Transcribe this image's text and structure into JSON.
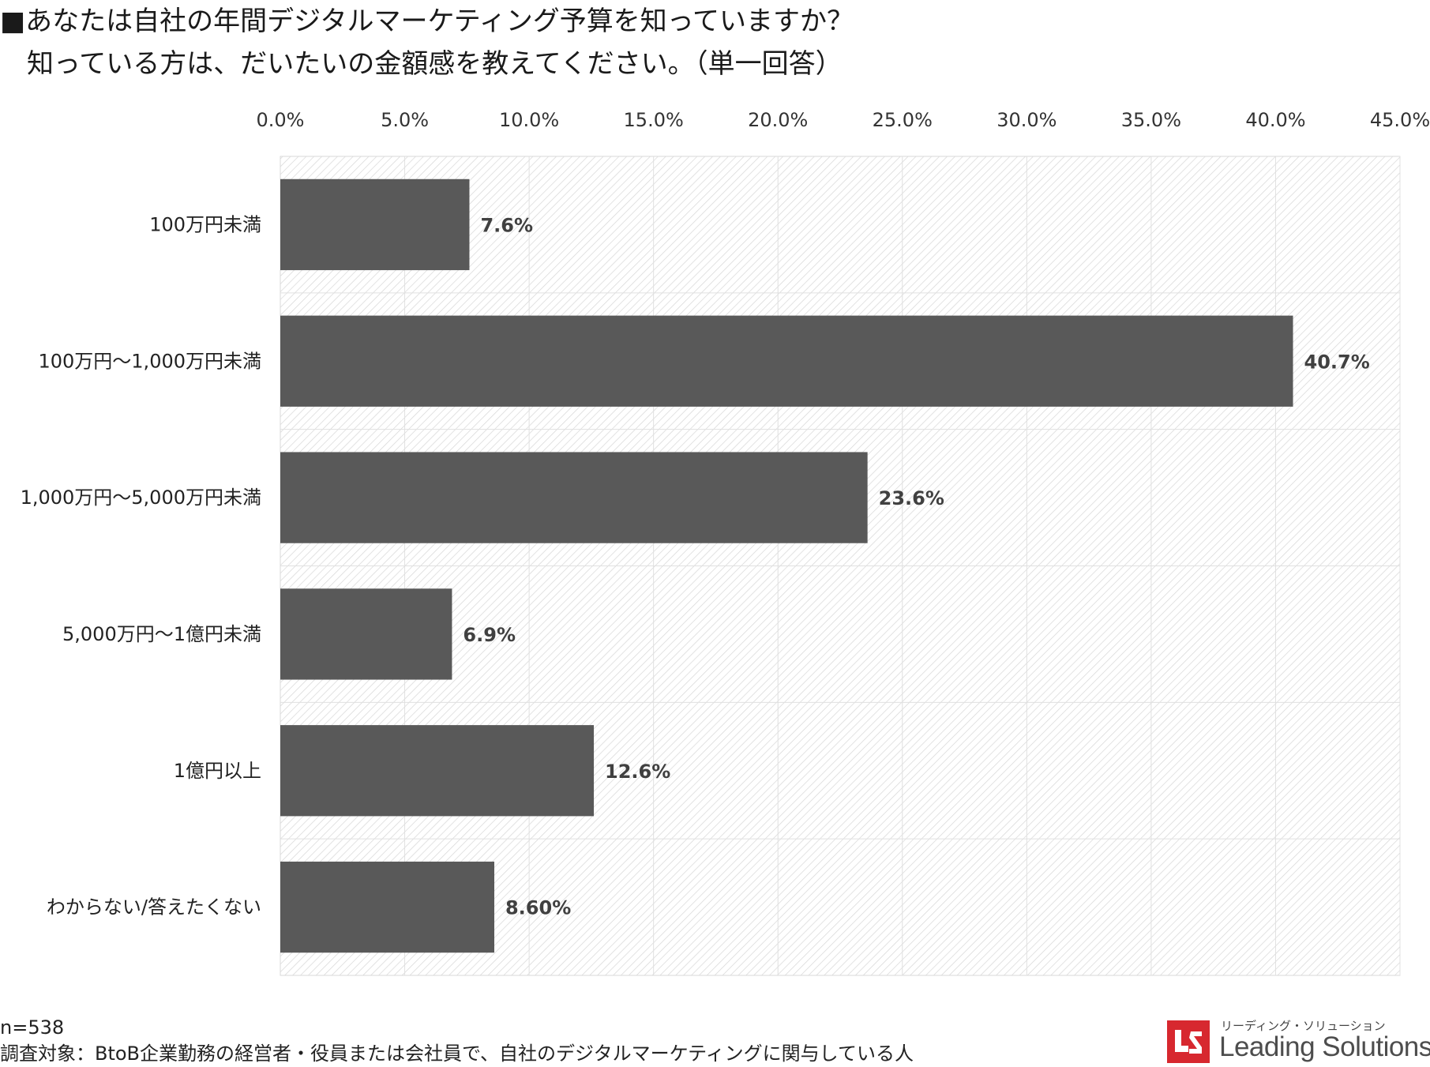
{
  "title": {
    "line1": "■あなたは自社の年間デジタルマーケティング予算を知っていますか？",
    "line2": "知っている方は、だいたいの金額感を教えてください。（単一回答）"
  },
  "chart_data": {
    "type": "bar",
    "orientation": "horizontal",
    "categories": [
      "100万円未満",
      "100万円～1,000万円未満",
      "1,000万円～5,000万円未満",
      "5,000万円～1億円未満",
      "1億円以上",
      "わからない/答えたくない"
    ],
    "values": [
      7.6,
      40.7,
      23.6,
      6.9,
      12.6,
      8.6
    ],
    "value_labels": [
      "7.6%",
      "40.7%",
      "23.6%",
      "6.9%",
      "12.6%",
      "8.60%"
    ],
    "xlim": [
      0,
      45
    ],
    "x_ticks": [
      0,
      5,
      10,
      15,
      20,
      25,
      30,
      35,
      40,
      45
    ],
    "x_tick_labels": [
      "0.0%",
      "5.0%",
      "10.0%",
      "15.0%",
      "20.0%",
      "25.0%",
      "30.0%",
      "35.0%",
      "40.0%",
      "45.0%"
    ],
    "x_axis_position": "top",
    "grid": true,
    "plot_background": "hatched",
    "bar_color": "#595959",
    "title": "",
    "xlabel": "",
    "ylabel": ""
  },
  "footer": {
    "sample": "n=538",
    "target": "調査対象：BtoB企業勤務の経営者・役員または会社員で、自社のデジタルマーケティングに関与している人"
  },
  "logo": {
    "subtitle": "リーディング・ソリューション",
    "name": "Leading Solutions",
    "color": "#d7282f"
  }
}
